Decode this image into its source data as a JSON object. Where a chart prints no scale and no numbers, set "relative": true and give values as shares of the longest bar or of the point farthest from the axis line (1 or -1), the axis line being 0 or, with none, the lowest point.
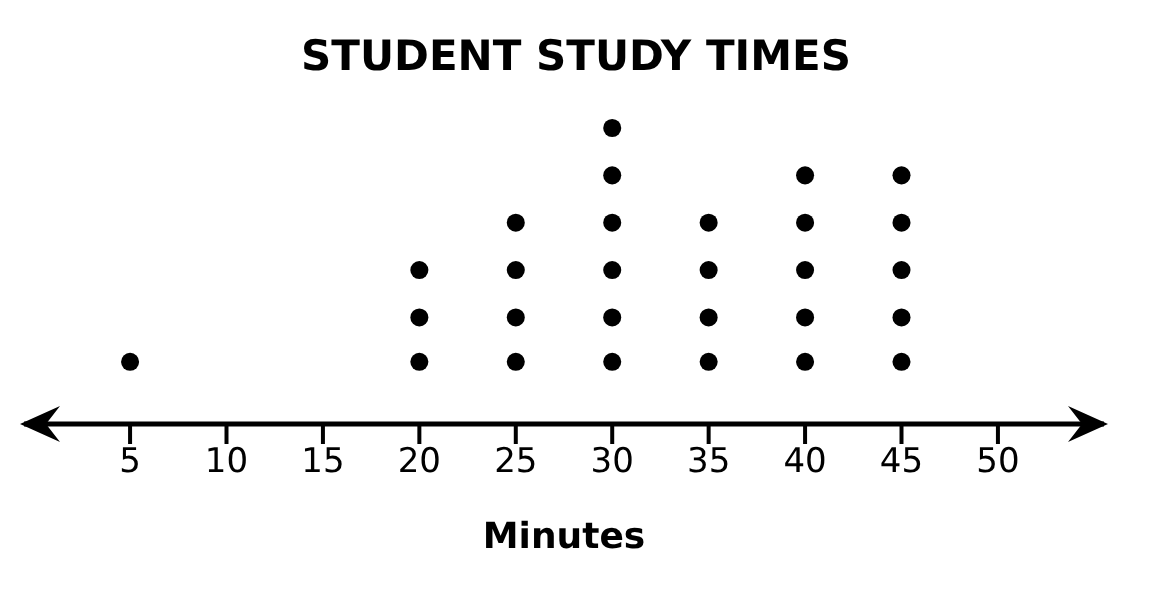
{
  "chart_data": {
    "type": "scatter",
    "title": "STUDENT STUDY TIMES",
    "xlabel": "Minutes",
    "x": [
      5,
      20,
      20,
      20,
      25,
      25,
      25,
      25,
      30,
      30,
      30,
      30,
      30,
      30,
      35,
      35,
      35,
      35,
      40,
      40,
      40,
      40,
      40,
      45,
      45,
      45,
      45,
      45
    ],
    "values": [
      0.21,
      0.21,
      0.36,
      0.52,
      0.21,
      0.36,
      0.52,
      0.68,
      0.21,
      0.36,
      0.52,
      0.68,
      0.84,
      1,
      0.21,
      0.36,
      0.52,
      0.68,
      0.21,
      0.36,
      0.52,
      0.68,
      0.84,
      0.21,
      0.36,
      0.52,
      0.68,
      0.84
    ],
    "relative": true,
    "color": "#000000",
    "marker": "circle",
    "xlim": [
      -0.5,
      55.5
    ],
    "xticks": [
      5,
      10,
      15,
      20,
      25,
      30,
      35,
      40,
      45,
      50
    ],
    "tick_labels": "x",
    "grid": false,
    "legend": false
  }
}
